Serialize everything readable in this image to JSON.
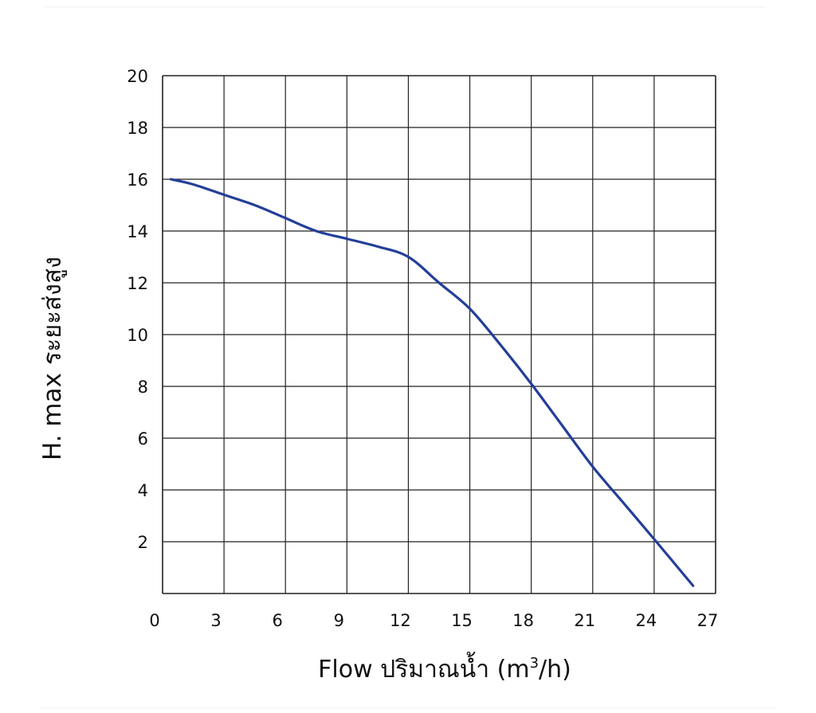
{
  "chart_data": {
    "type": "line",
    "title": "",
    "xlabel": "Flow  ปริมาณน้ำ (m",
    "xlabel_sup": "3",
    "xlabel_tail": "/h)",
    "ylabel": "H. max  ระยะส่งสูง",
    "xlim": [
      0,
      27
    ],
    "ylim": [
      0,
      20
    ],
    "xticks": [
      0,
      3,
      6,
      9,
      12,
      15,
      18,
      21,
      24,
      27
    ],
    "yticks": [
      2,
      4,
      6,
      8,
      10,
      12,
      14,
      16,
      18,
      20
    ],
    "grid": true,
    "line_color": "#243e98",
    "grid_color": "#222222",
    "series": [
      {
        "x": [
          0.4,
          1.5,
          3.0,
          4.5,
          6.0,
          7.5,
          9.0,
          10.5,
          12.0,
          13.5,
          15.0,
          16.5,
          18.0,
          19.5,
          21.0,
          22.5,
          24.0,
          25.9
        ],
        "y": [
          16.0,
          15.8,
          15.4,
          15.0,
          14.5,
          14.0,
          13.7,
          13.4,
          13.0,
          12.0,
          11.0,
          9.6,
          8.1,
          6.5,
          4.9,
          3.5,
          2.1,
          0.3
        ]
      }
    ]
  }
}
